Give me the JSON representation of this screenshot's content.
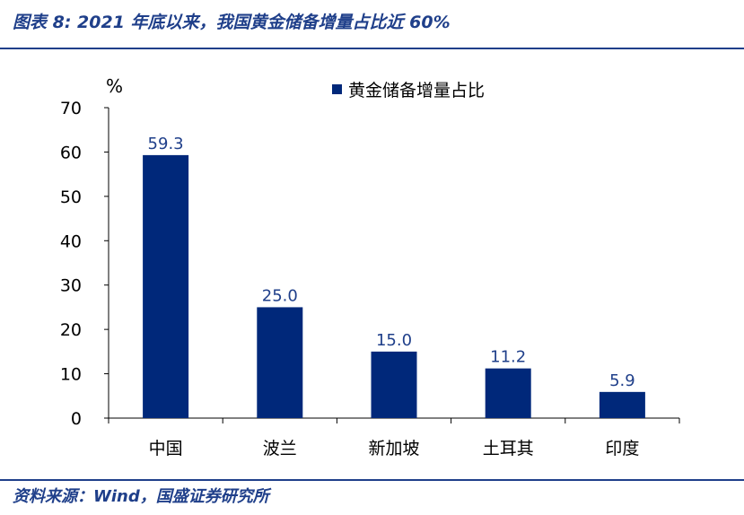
{
  "figure": {
    "title": "图表 8: 2021 年底以来，我国黄金储备增量占比近 60%",
    "source": "资料来源：Wind，国盛证券研究所"
  },
  "chart_data": {
    "type": "bar",
    "unit_label": "%",
    "categories": [
      "中国",
      "波兰",
      "新加坡",
      "土耳其",
      "印度"
    ],
    "series": [
      {
        "name": "黄金储备增量占比",
        "values": [
          59.3,
          25.0,
          15.0,
          11.2,
          5.9
        ]
      }
    ],
    "value_labels": [
      "59.3",
      "25.0",
      "15.0",
      "11.2",
      "5.9"
    ],
    "ylim": [
      0,
      70
    ],
    "yticks": [
      0,
      10,
      20,
      30,
      40,
      50,
      60,
      70
    ],
    "grid": false,
    "legend_position": "top-right",
    "colors": {
      "bar": "#00287a",
      "title": "#1f3f8a",
      "data_label": "#1f3f8a"
    }
  }
}
